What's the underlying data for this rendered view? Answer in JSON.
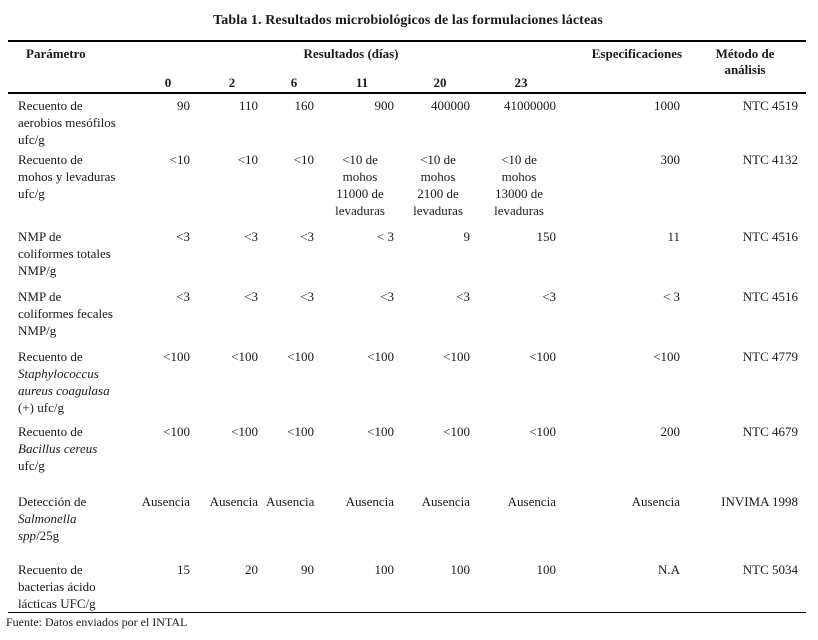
{
  "title": "Tabla 1. Resultados microbiológicos de las formulaciones lácteas",
  "headers": {
    "parameter": "Parámetro",
    "results_group": "Resultados (días)",
    "days": [
      "0",
      "2",
      "6",
      "11",
      "20",
      "23"
    ],
    "specifications": "Especificaciones",
    "method": "Método de\nanálisis"
  },
  "rows": [
    {
      "param": [
        {
          "t": "Recuento de\naerobios mesófilos\nufc/g",
          "i": false
        }
      ],
      "values": [
        "90",
        "110",
        "160",
        "900",
        "400000",
        "41000000"
      ],
      "spec": "1000",
      "method": "NTC 4519"
    },
    {
      "param": [
        {
          "t": "Recuento de\nmohos y levaduras\nufc/g",
          "i": false
        }
      ],
      "values": [
        "<10",
        "<10",
        "<10",
        "<10 de\nmohos\n11000 de\nlevaduras",
        "<10 de\nmohos\n2100 de\nlevaduras",
        "<10 de\nmohos\n13000 de\nlevaduras"
      ],
      "spec": "300",
      "method": "NTC 4132"
    },
    {
      "param": [
        {
          "t": "NMP de\ncoliformes totales\nNMP/g",
          "i": false
        }
      ],
      "values": [
        "<3",
        "<3",
        "<3",
        "< 3",
        "9",
        "150"
      ],
      "spec": "11",
      "method": "NTC 4516"
    },
    {
      "param": [
        {
          "t": "NMP de\ncoliformes fecales\nNMP/g",
          "i": false
        }
      ],
      "values": [
        "<3",
        "<3",
        "<3",
        "<3",
        "<3",
        "<3"
      ],
      "spec": "< 3",
      "method": "NTC 4516"
    },
    {
      "param": [
        {
          "t": "Recuento de\n",
          "i": false
        },
        {
          "t": "Staphylococcus\naureus coagulasa",
          "i": true
        },
        {
          "t": "\n(+) ufc/g",
          "i": false
        }
      ],
      "values": [
        "<100",
        "<100",
        "<100",
        "<100",
        "<100",
        "<100"
      ],
      "spec": "<100",
      "method": "NTC 4779"
    },
    {
      "param": [
        {
          "t": "Recuento de\n",
          "i": false
        },
        {
          "t": "Bacillus cereus",
          "i": true
        },
        {
          "t": "\nufc/g",
          "i": false
        }
      ],
      "values": [
        "<100",
        "<100",
        "<100",
        "<100",
        "<100",
        "<100"
      ],
      "spec": "200",
      "method": "NTC 4679"
    },
    {
      "param": [
        {
          "t": "Detección de\n",
          "i": false
        },
        {
          "t": "Salmonella\nspp",
          "i": true
        },
        {
          "t": "/25g",
          "i": false
        }
      ],
      "values": [
        "Ausencia",
        "Ausencia",
        "Ausencia",
        "Ausencia",
        "Ausencia",
        "Ausencia"
      ],
      "spec": "Ausencia",
      "method": "INVIMA 1998"
    },
    {
      "param": [
        {
          "t": "Recuento de\nbacterias ácido\nlácticas UFC/g",
          "i": false
        }
      ],
      "values": [
        "15",
        "20",
        "90",
        "100",
        "100",
        "100"
      ],
      "spec": "N.A",
      "method": "NTC 5034"
    }
  ],
  "source": "Fuente: Datos enviados por el INTAL",
  "colors": {
    "text": "#1a1a1a",
    "rule": "#000000",
    "background": "#ffffff"
  }
}
